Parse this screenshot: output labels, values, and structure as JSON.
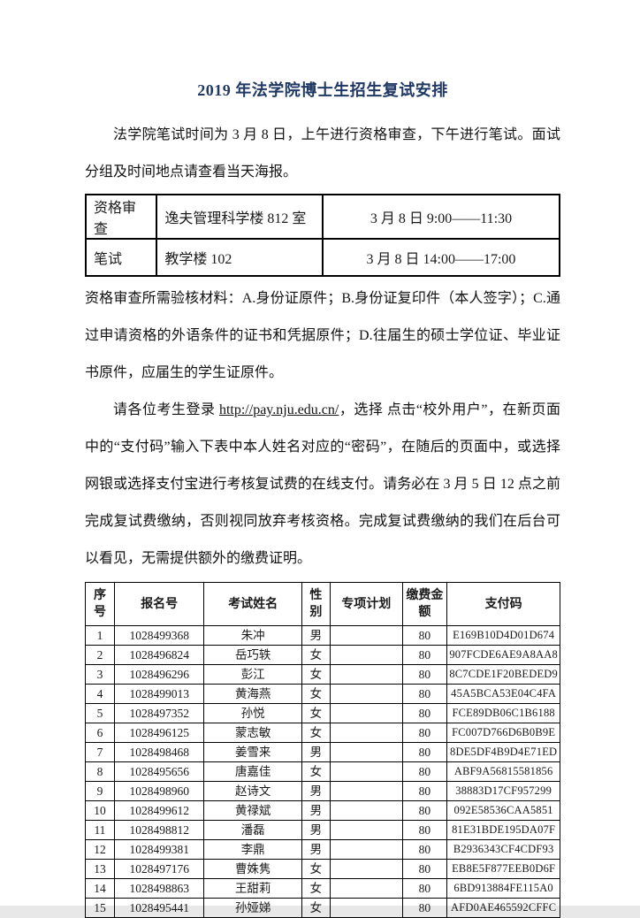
{
  "doc": {
    "title": "2019 年法学院博士生招生复试安排"
  },
  "paragraphs": {
    "p1": "法学院笔试时间为 3 月 8 日，上午进行资格审查，下午进行笔试。面试分组及时间地点请查看当天海报。",
    "p2": "资格审查所需验核材料：A.身份证原件；B.身份证复印件（本人签字）；C.通过申请资格的外语条件的证书和凭据原件；D.往届生的硕士学位证、毕业证书原件，应届生的学生证原件。",
    "p3_before": "请各位考生登录 ",
    "p3_link": "http://pay.nju.edu.cn/",
    "p3_after": "，选择 点击“校外用户”，在新页面中的“支付码”输入下表中本人姓名对应的“密码”，在随后的页面中，或选择网银或选择支付宝进行考核复试费的在线支付。请务必在 3 月 5 日 12 点之前完成复试费缴纳，否则视同放弃考核资格。完成复试费缴纳的我们在后台可以看见，无需提供额外的缴费证明。"
  },
  "schedule_table": {
    "rows": [
      {
        "item": "资格审查",
        "location": "逸夫管理科学楼 812 室",
        "time": "3 月 8 日  9:00——11:30"
      },
      {
        "item": "笔试",
        "location": "教学楼 102",
        "time": "3 月 8 日  14:00——17:00"
      }
    ]
  },
  "candidates_table": {
    "headers": [
      "序号",
      "报名号",
      "考试姓名",
      "性别",
      "专项计划",
      "缴费金额",
      "支付码"
    ],
    "rows": [
      [
        "1",
        "1028499368",
        "朱冲",
        "男",
        "",
        "80",
        "E169B10D4D01D674"
      ],
      [
        "2",
        "1028496824",
        "岳巧轶",
        "女",
        "",
        "80",
        "907FCDE6AE9A8AA8"
      ],
      [
        "3",
        "1028496296",
        "彭江",
        "女",
        "",
        "80",
        "8C7CDE1F20BEDED9"
      ],
      [
        "4",
        "1028499013",
        "黄海燕",
        "女",
        "",
        "80",
        "45A5BCA53E04C4FA"
      ],
      [
        "5",
        "1028497352",
        "孙悦",
        "女",
        "",
        "80",
        "FCE89DB06C1B6188"
      ],
      [
        "6",
        "1028496125",
        "蒙志敏",
        "女",
        "",
        "80",
        "FC007D766D6B0B9E"
      ],
      [
        "7",
        "1028498468",
        "姜雪来",
        "男",
        "",
        "80",
        "8DE5DF4B9D4E71ED"
      ],
      [
        "8",
        "1028495656",
        "唐嘉佳",
        "女",
        "",
        "80",
        "ABF9A56815581856"
      ],
      [
        "9",
        "1028498960",
        "赵诗文",
        "男",
        "",
        "80",
        "38883D17CF957299"
      ],
      [
        "10",
        "1028499612",
        "黄禄斌",
        "男",
        "",
        "80",
        "092E58536CAA5851"
      ],
      [
        "11",
        "1028498812",
        "潘磊",
        "男",
        "",
        "80",
        "81E31BDE195DA07F"
      ],
      [
        "12",
        "1028499381",
        "李鼎",
        "男",
        "",
        "80",
        "B2936343CF4CDF93"
      ],
      [
        "13",
        "1028497176",
        "曹姝隽",
        "女",
        "",
        "80",
        "EB8E5F877EEB0D6F"
      ],
      [
        "14",
        "1028498863",
        "王甜莉",
        "女",
        "",
        "80",
        "6BD913884FE115A0"
      ],
      [
        "15",
        "1028495441",
        "孙娅娣",
        "女",
        "",
        "80",
        "AFD0AE465592CFFC"
      ]
    ]
  },
  "colors": {
    "title_blue": "#1F3864",
    "border_black": "#000000",
    "page_background": "#FFFFFF"
  }
}
